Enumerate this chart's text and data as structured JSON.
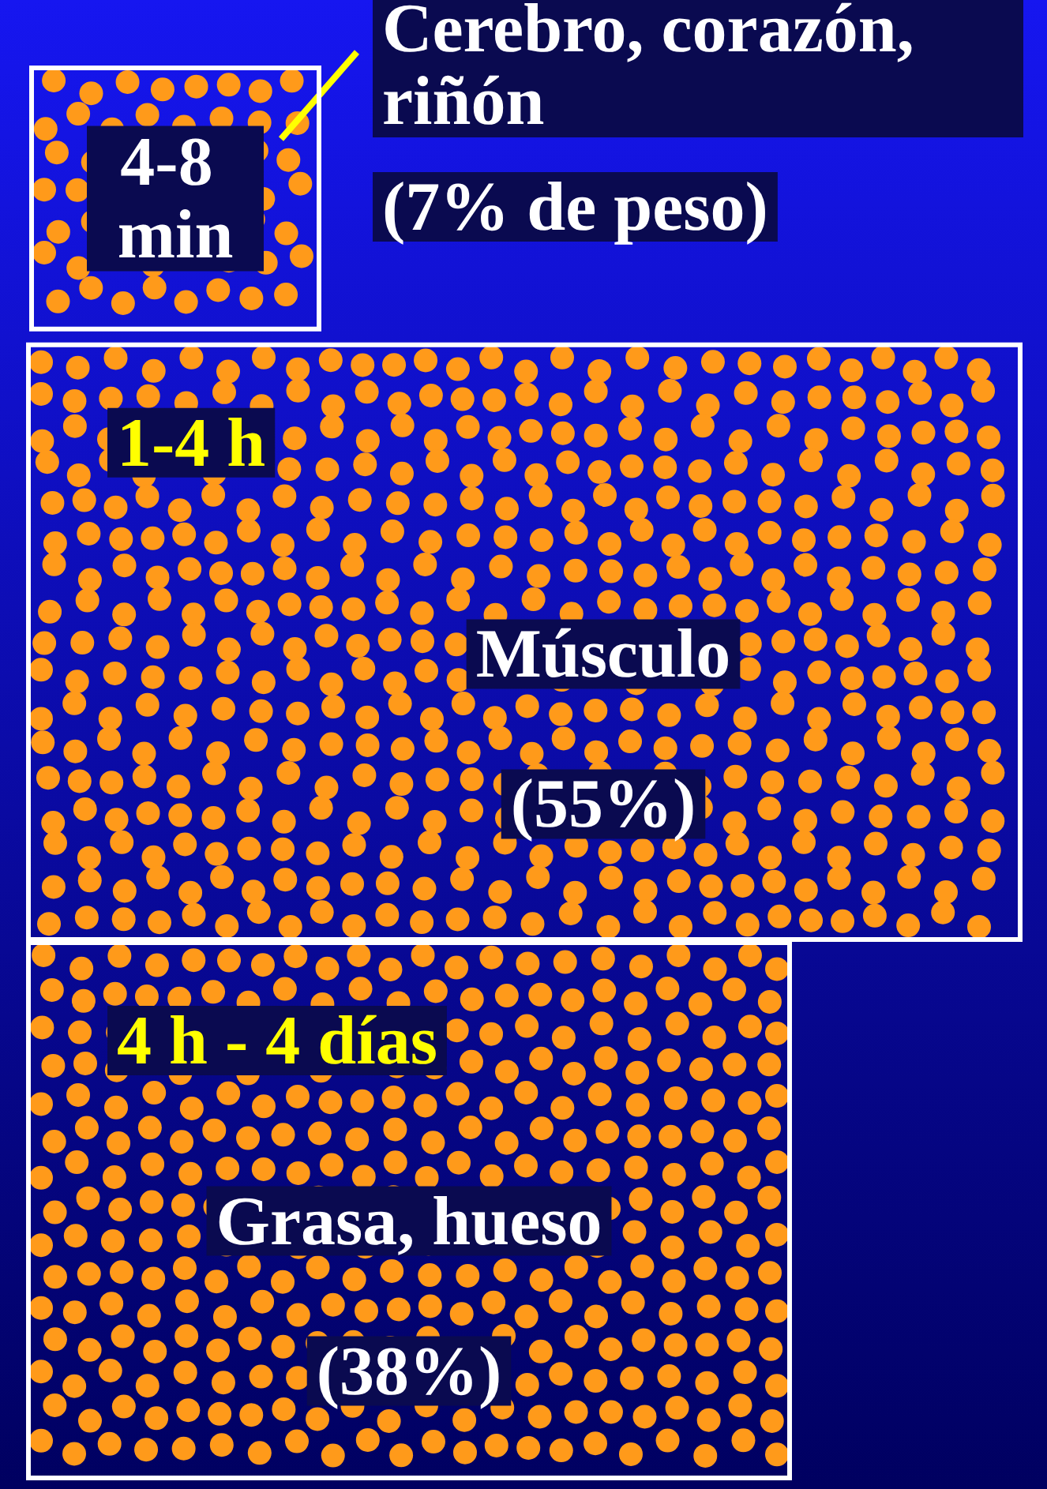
{
  "chart_data": {
    "type": "other",
    "categories": [
      "Cerebro, corazón, riñón",
      "Músculo",
      "Grasa, hueso"
    ],
    "values": [
      7,
      55,
      38
    ],
    "value_labels": [
      "(7% de peso)",
      "(55%)",
      "(38%)"
    ],
    "annotations": [
      "4-8 min",
      "1-4 h",
      "4 h - 4 días"
    ]
  }
}
